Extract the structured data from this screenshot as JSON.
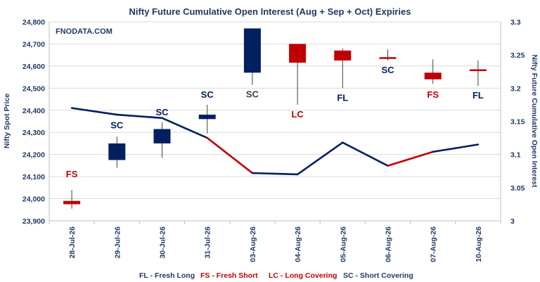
{
  "chart_data": {
    "type": "candlestick-line",
    "title": "Nifty Future Cumulative Open Interest (Aug + Sep + Oct) Expiries",
    "watermark": "FNODATA.COM",
    "ylabel": "Nifty Spot Price",
    "y2label": "Nifty Future Cumulative Open Interest",
    "ylim": [
      23900,
      24800
    ],
    "yticks": [
      "23,900",
      "24,000",
      "24,100",
      "24,200",
      "24,300",
      "24,400",
      "24,500",
      "24,600",
      "24,700",
      "24,800"
    ],
    "y2lim": [
      3.0,
      3.3
    ],
    "y2ticks": [
      "3",
      "3.05",
      "3.1",
      "3.15",
      "3.2",
      "3.25",
      "3.3"
    ],
    "categories": [
      "28-Jul-26",
      "29-Jul-26",
      "30-Jul-26",
      "31-Jul-26",
      "03-Aug-26",
      "04-Aug-26",
      "05-Aug-26",
      "06-Aug-26",
      "07-Aug-26",
      "10-Aug-26"
    ],
    "candles": [
      {
        "open": 23990,
        "close": 23975,
        "high": 24040,
        "low": 23955,
        "code": "FS"
      },
      {
        "open": 24175,
        "close": 24250,
        "high": 24280,
        "low": 24140,
        "code": "SC"
      },
      {
        "open": 24250,
        "close": 24315,
        "high": 24345,
        "low": 24185,
        "code": "SC"
      },
      {
        "open": 24360,
        "close": 24380,
        "high": 24425,
        "low": 24295,
        "code": "SC"
      },
      {
        "open": 24570,
        "close": 24770,
        "high": 24770,
        "low": 24515,
        "code": "SC"
      },
      {
        "open": 24700,
        "close": 24615,
        "high": 24700,
        "low": 24425,
        "code": "LC"
      },
      {
        "open": 24670,
        "close": 24625,
        "high": 24680,
        "low": 24500,
        "code": "FL"
      },
      {
        "open": 24640,
        "close": 24635,
        "high": 24675,
        "low": 24625,
        "code": "SC"
      },
      {
        "open": 24570,
        "close": 24540,
        "high": 24630,
        "low": 24520,
        "code": "FS"
      },
      {
        "open": 24585,
        "close": 24582,
        "high": 24625,
        "low": 24510,
        "code": "FL"
      }
    ],
    "open_interest": [
      3.17,
      3.16,
      3.155,
      3.125,
      3.072,
      3.07,
      3.118,
      3.083,
      3.104,
      3.115
    ],
    "legend": [
      {
        "code": "FL",
        "text": "FL - Fresh Long",
        "color": "#1f3864"
      },
      {
        "code": "FS",
        "text": "FS - Fresh Short",
        "color": "#c00000"
      },
      {
        "code": "LC",
        "text": "LC - Long Covering",
        "color": "#c00000"
      },
      {
        "code": "SC",
        "text": "SC - Short Covering",
        "color": "#1f3864"
      }
    ],
    "colors": {
      "blue": "#002060",
      "red": "#c00000",
      "grey": "#404040",
      "grid": "#d9d9d9"
    }
  }
}
